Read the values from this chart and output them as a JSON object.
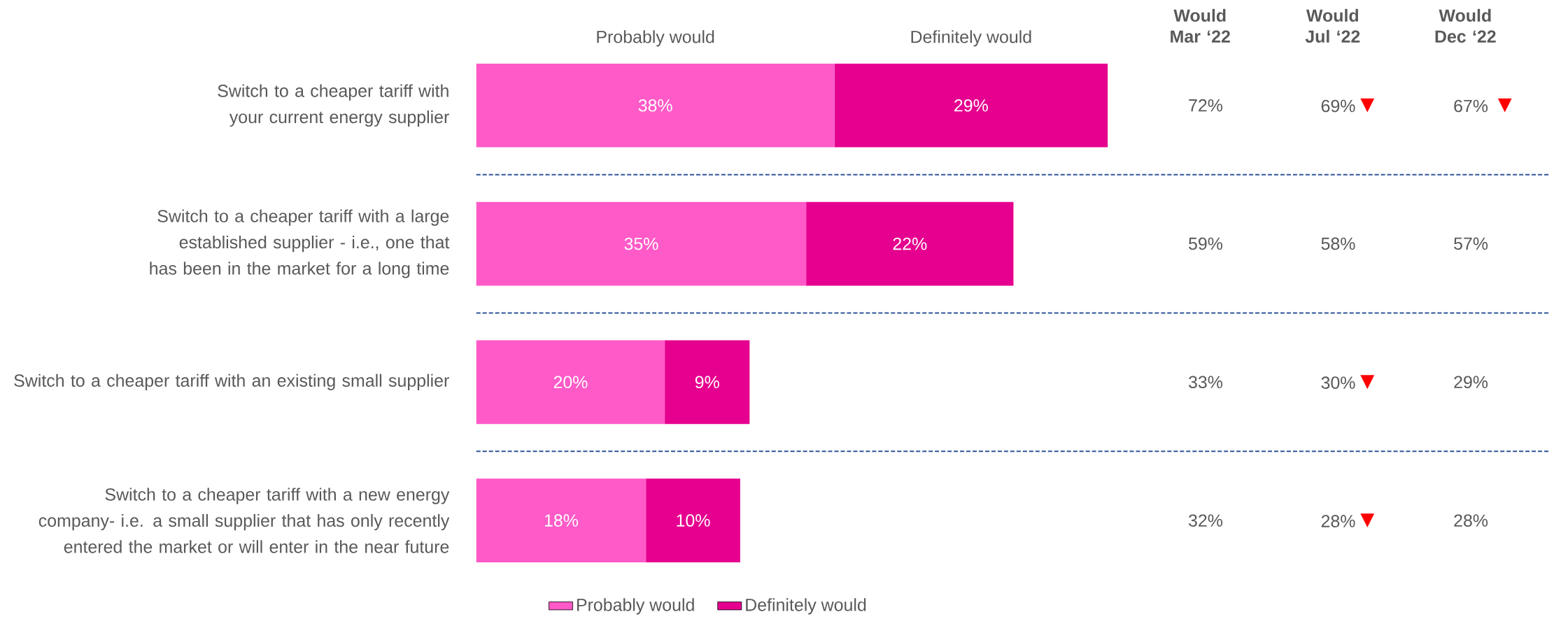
{
  "chart_data": [
    {
      "type": "bar",
      "orientation": "horizontal",
      "stacked": true,
      "categories": [
        "Switch to a cheaper tariff with your current energy supplier",
        "Switch to a cheaper tariff with a large established supplier - i.e., one that has been in the market for a long time",
        "Switch to a cheaper tariff with an existing small supplier",
        "Switch to a cheaper tariff with a new energy company- i.e. a small supplier that has only recently entered the market or will enter in the near future"
      ],
      "series": [
        {
          "name": "Probably would",
          "color": "#ff5ac8",
          "values": [
            38,
            35,
            20,
            18
          ],
          "value_labels": [
            "38%",
            "35%",
            "20%",
            "18%"
          ]
        },
        {
          "name": "Definitely would",
          "color": "#e6008f",
          "values": [
            29,
            22,
            9,
            10
          ],
          "value_labels": [
            "29%",
            "22%",
            "9%",
            "10%"
          ]
        }
      ],
      "grid": "y",
      "legend": "bottom"
    },
    {
      "type": "other",
      "categories": [
        "Would Mar ‘22",
        "Would Jul ‘22",
        "Would Dec ‘22"
      ],
      "cell_labels": [
        [
          "72%",
          "69%▼",
          "67% ▼"
        ],
        [
          "59%",
          "58%",
          "57%"
        ],
        [
          "33%",
          "30%▼",
          "29%"
        ],
        [
          "32%",
          "28%▼",
          "28%"
        ]
      ]
    }
  ]
}
